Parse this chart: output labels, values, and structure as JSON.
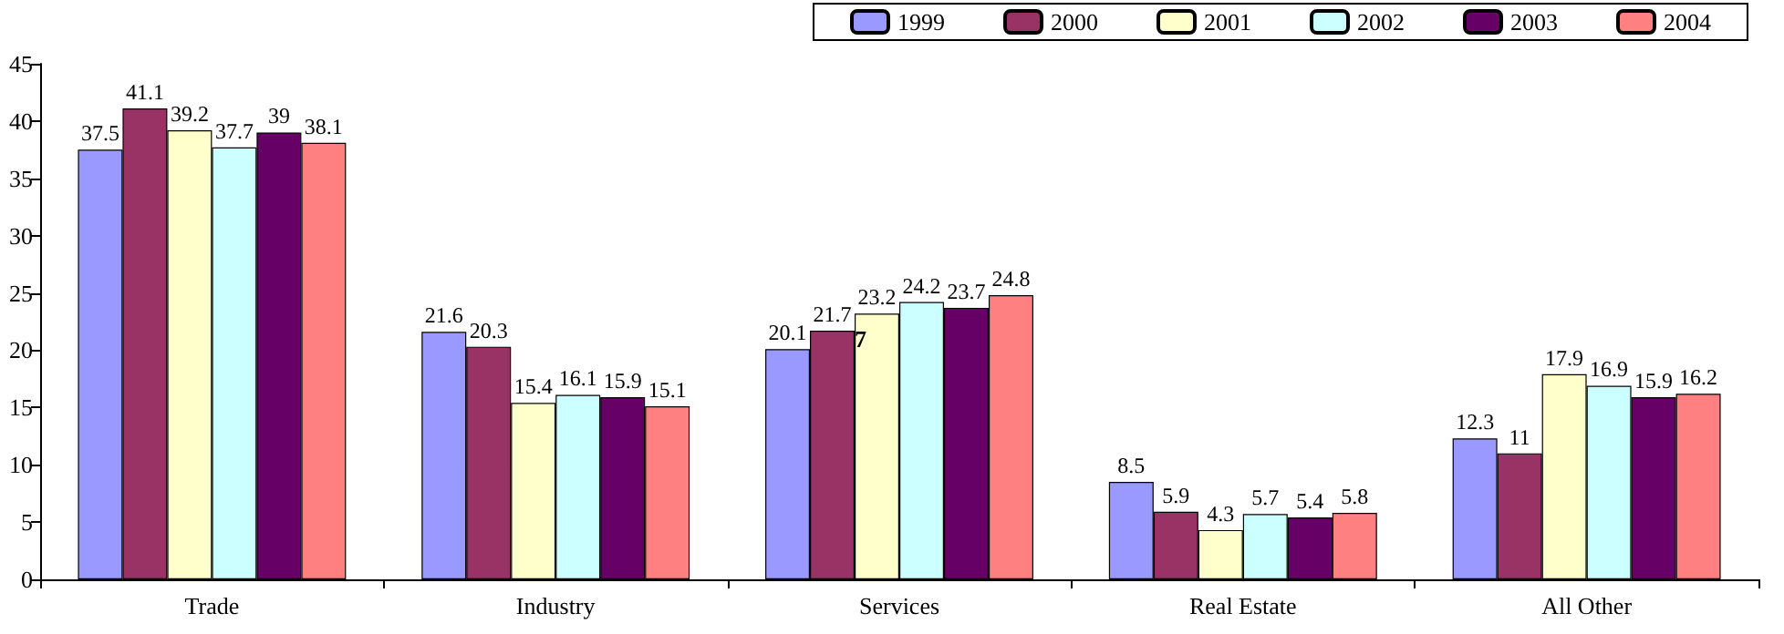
{
  "chart_data": {
    "type": "bar",
    "categories": [
      "Trade",
      "Industry",
      "Services",
      "Real Estate",
      "All Other"
    ],
    "series": [
      {
        "name": "1999",
        "color": "#9999ff",
        "values": [
          37.5,
          21.6,
          20.1,
          8.5,
          12.3
        ]
      },
      {
        "name": "2000",
        "color": "#993366",
        "values": [
          41.1,
          20.3,
          21.7,
          5.9,
          11
        ]
      },
      {
        "name": "2001",
        "color": "#ffffcc",
        "values": [
          39.2,
          15.4,
          23.2,
          4.3,
          17.9
        ]
      },
      {
        "name": "2002",
        "color": "#ccffff",
        "values": [
          37.7,
          16.1,
          24.2,
          5.7,
          16.9
        ]
      },
      {
        "name": "2003",
        "color": "#660066",
        "values": [
          39,
          15.9,
          23.7,
          5.4,
          15.9
        ]
      },
      {
        "name": "2004",
        "color": "#ff8080",
        "values": [
          38.1,
          15.1,
          24.8,
          5.8,
          16.2
        ]
      }
    ],
    "annotations": [
      {
        "text": "7",
        "x": "Services",
        "y": 21
      }
    ],
    "ylim": [
      0,
      45
    ],
    "yticks": [
      0,
      5,
      10,
      15,
      20,
      25,
      30,
      35,
      40,
      45
    ],
    "grid": false,
    "legend": "top right",
    "data_labels": true
  }
}
